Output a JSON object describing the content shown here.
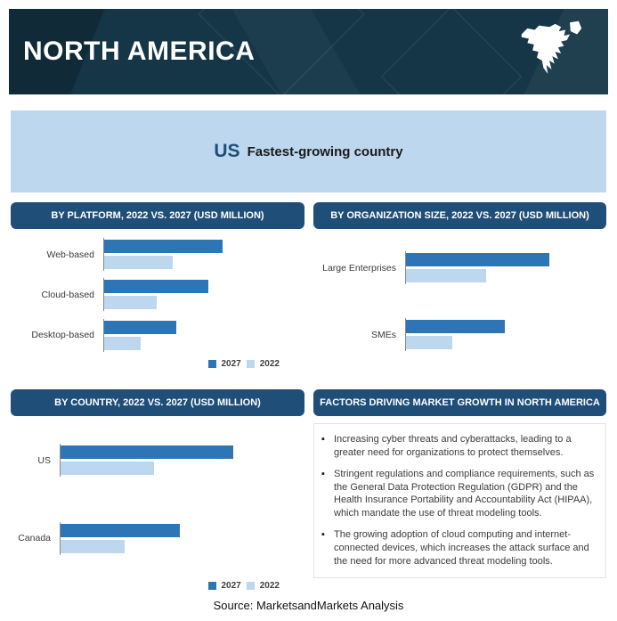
{
  "banner": {
    "title": "NORTH AMERICA"
  },
  "highlight": {
    "country": "US",
    "label": "Fastest-growing country"
  },
  "panels": {
    "platform": {
      "header": "BY PLATFORM, 2022 VS. 2027 (USD MILLION)"
    },
    "org_size": {
      "header": "BY ORGANIZATION SIZE, 2022 VS. 2027 (USD MILLION)"
    },
    "country": {
      "header": "BY COUNTRY, 2022 VS. 2027 (USD MILLION)"
    },
    "factors": {
      "header": "FACTORS DRIVING MARKET GROWTH IN NORTH AMERICA",
      "bullets": [
        "Increasing cyber threats and cyberattacks, leading to a greater need for organizations to protect themselves.",
        "Stringent regulations and compliance requirements, such as the General Data Protection Regulation (GDPR) and the Health Insurance Portability and Accountability Act (HIPAA), which mandate the use of threat modeling tools.",
        "The growing adoption of cloud computing and internet-connected devices, which increases the attack surface and the need for more advanced threat modeling tools."
      ]
    }
  },
  "legend": {
    "label_2027": "2027",
    "label_2022": "2022"
  },
  "source": "Source: MarketsandMarkets Analysis",
  "colors": {
    "banner_bg": "#143647",
    "header_bg": "#1f4e79",
    "band_bg": "#bdd7ee",
    "bar_2027": "#2e75b6",
    "bar_2022": "#bdd7ee"
  },
  "chart_data": [
    {
      "type": "bar",
      "orientation": "horizontal",
      "title": "BY PLATFORM, 2022 VS. 2027 (USD MILLION)",
      "units": "USD Million",
      "note": "numeric axis not labeled in source; values are relative estimates (2027 Web-based = 100)",
      "categories": [
        "Web-based",
        "Cloud-based",
        "Desktop-based"
      ],
      "series": [
        {
          "name": "2027",
          "color_key": "bar_2027",
          "values": [
            100,
            88,
            61
          ]
        },
        {
          "name": "2022",
          "color_key": "bar_2022",
          "values": [
            58,
            44,
            31
          ]
        }
      ],
      "value_axis": {
        "range": [
          0,
          160
        ]
      },
      "legend": true,
      "legend_position": "bottom-right"
    },
    {
      "type": "bar",
      "orientation": "horizontal",
      "title": "BY ORGANIZATION SIZE, 2022 VS. 2027 (USD MILLION)",
      "units": "USD Million",
      "note": "numeric axis not labeled in source; values are relative estimates (2027 Large Enterprises = 100)",
      "categories": [
        "Large Enterprises",
        "SMEs"
      ],
      "series": [
        {
          "name": "2027",
          "color_key": "bar_2027",
          "values": [
            100,
            69
          ]
        },
        {
          "name": "2022",
          "color_key": "bar_2022",
          "values": [
            56,
            32
          ]
        }
      ],
      "value_axis": {
        "range": [
          0,
          132
        ]
      },
      "legend": false
    },
    {
      "type": "bar",
      "orientation": "horizontal",
      "title": "BY COUNTRY, 2022 VS. 2027 (USD MILLION)",
      "units": "USD Million",
      "note": "numeric axis not labeled in source; values are relative estimates (2027 US = 100)",
      "categories": [
        "US",
        "Canada"
      ],
      "series": [
        {
          "name": "2027",
          "color_key": "bar_2027",
          "values": [
            100,
            69
          ]
        },
        {
          "name": "2022",
          "color_key": "bar_2022",
          "values": [
            54,
            37
          ]
        }
      ],
      "value_axis": {
        "range": [
          0,
          135
        ]
      },
      "legend": true,
      "legend_position": "bottom-right"
    }
  ]
}
